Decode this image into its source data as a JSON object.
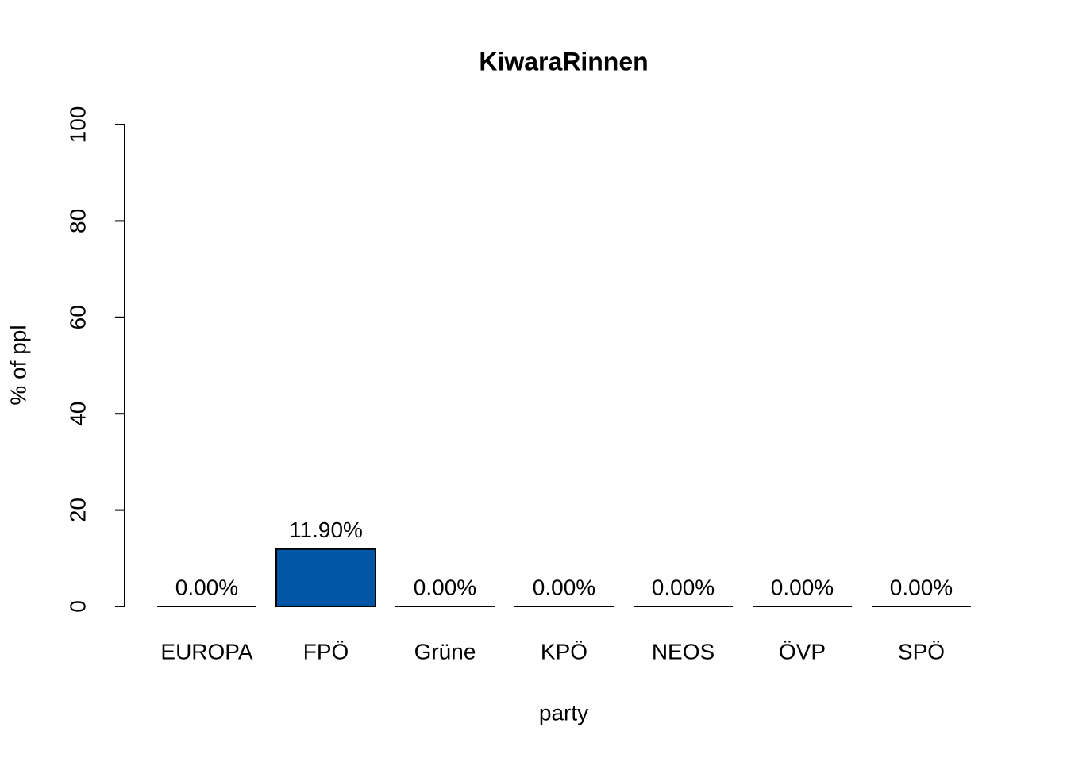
{
  "chart_data": {
    "type": "bar",
    "title": "KiwaraRinnen",
    "x_label": "party",
    "y_label": "% of ppl",
    "categories": [
      "EUROPA",
      "FPÖ",
      "Grüne",
      "KPÖ",
      "NEOS",
      "ÖVP",
      "SPÖ"
    ],
    "values": [
      0,
      11.9,
      0,
      0,
      0,
      0,
      0
    ],
    "value_labels": [
      "0.00%",
      "11.90%",
      "0.00%",
      "0.00%",
      "0.00%",
      "0.00%",
      "0.00%"
    ],
    "color": "#0056a4",
    "ylim": [
      0,
      100
    ],
    "yticks": [
      0,
      20,
      40,
      60,
      80,
      100
    ],
    "grid": false
  }
}
